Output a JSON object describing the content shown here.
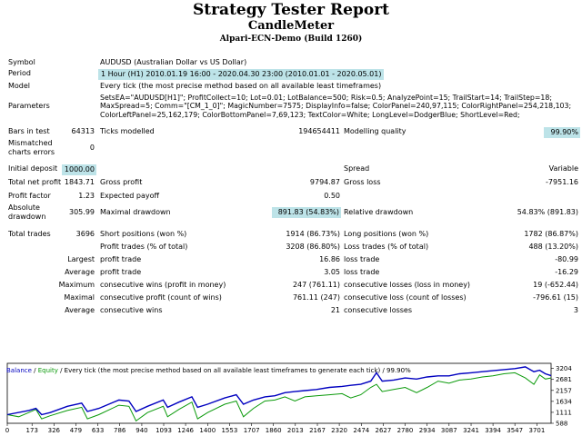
{
  "header": {
    "title": "Strategy Tester Report",
    "ea_name": "CandleMeter",
    "server": "Alpari-ECN-Demo (Build 1260)"
  },
  "info": {
    "symbol_label": "Symbol",
    "symbol_value": "AUDUSD (Australian Dollar vs US Dollar)",
    "period_label": "Period",
    "period_value": "1 Hour (H1) 2010.01.19 16:00 - 2020.04.30 23:00 (2010.01.01 - 2020.05.01)",
    "model_label": "Model",
    "model_value": "Every tick (the most precise method based on all available least timeframes)",
    "parameters_label": "Parameters",
    "parameters_value": "SetsEA=\"AUDUSD[H1]\"; ProfitCollect=10; Lot=0.01; LotBalance=500; Risk=0.5; AnalyzePoint=15; TrailStart=14; TrailStep=18; MaxSpread=5; Comm=\"[CM_1_0]\"; MagicNumber=7575; DisplayInfo=false; ColorPanel=240,97,115; ColorRightPanel=254,218,103; ColorLeftPanel=25,162,179; ColorBottomPanel=7,69,123; TextColor=White; LongLevel=DodgerBlue; ShortLevel=Red;"
  },
  "stats": {
    "bars_label": "Bars in test",
    "bars_value": "64313",
    "ticks_label": "Ticks modelled",
    "ticks_value": "194654411",
    "quality_label": "Modelling quality",
    "quality_value": "99.90%",
    "mismatch_label_1": "Mismatched",
    "mismatch_label_2": "charts errors",
    "mismatch_value": "0",
    "deposit_label": "Initial deposit",
    "deposit_value": "1000.00",
    "spread_label": "Spread",
    "spread_value": "Variable",
    "netprofit_label": "Total net profit",
    "netprofit_value": "1843.71",
    "grossprofit_label": "Gross profit",
    "grossprofit_value": "9794.87",
    "grossloss_label": "Gross loss",
    "grossloss_value": "-7951.16",
    "pf_label": "Profit factor",
    "pf_value": "1.23",
    "payoff_label": "Expected payoff",
    "payoff_value": "0.50",
    "absdd_label_1": "Absolute",
    "absdd_label_2": "drawdown",
    "absdd_value": "305.99",
    "maxdd_label": "Maximal drawdown",
    "maxdd_value": "891.83 (54.83%)",
    "reldd_label": "Relative drawdown",
    "reldd_value": "54.83% (891.83)",
    "trades_label": "Total trades",
    "trades_value": "3696",
    "short_label": "Short positions (won %)",
    "short_value": "1914 (86.73%)",
    "long_label": "Long positions (won %)",
    "long_value": "1782 (86.87%)",
    "ptrades_label": "Profit trades (% of total)",
    "ptrades_value": "3208 (86.80%)",
    "ltrades_label": "Loss trades (% of total)",
    "ltrades_value": "488 (13.20%)",
    "largest_label": "Largest",
    "largest_p_label": "profit trade",
    "largest_p_value": "16.86",
    "largest_l_label": "loss trade",
    "largest_l_value": "-80.99",
    "average_label": "Average",
    "average_p_label": "profit trade",
    "average_p_value": "3.05",
    "average_l_label": "loss trade",
    "average_l_value": "-16.29",
    "maxcons_label": "Maximum",
    "maxcons_w_label": "consecutive wins (profit in money)",
    "maxcons_w_value": "247 (761.11)",
    "maxcons_l_label": "consecutive losses (loss in money)",
    "maxcons_l_value": "19 (-652.44)",
    "maximal_label": "Maximal",
    "maximal_w_label": "consecutive profit (count of wins)",
    "maximal_w_value": "761.11 (247)",
    "maximal_l_label": "consecutive loss (count of losses)",
    "maximal_l_value": "-796.61 (15)",
    "avgcons_label": "Average",
    "avgcons_w_label": "consecutive wins",
    "avgcons_w_value": "21",
    "avgcons_l_label": "consecutive losses",
    "avgcons_l_value": "3"
  },
  "chart_legend": {
    "balance": "Balance",
    "sep": " / ",
    "equity": "Equity",
    "rest": " / Every tick (the most precise method based on all available least timeframes to generate each tick) / 99.90%"
  },
  "chart_data": {
    "type": "line",
    "x_ticks": [
      "0",
      "173",
      "326",
      "479",
      "633",
      "786",
      "940",
      "1093",
      "1246",
      "1400",
      "1553",
      "1707",
      "1860",
      "2013",
      "2167",
      "2320",
      "2474",
      "2627",
      "2780",
      "2934",
      "3087",
      "3241",
      "3394",
      "3547",
      "3701"
    ],
    "y_ticks": [
      "3204",
      "2681",
      "2157",
      "1634",
      "1111",
      "588"
    ],
    "ylim": [
      588,
      3450
    ],
    "xlim": [
      0,
      3800
    ],
    "series": [
      {
        "name": "Balance",
        "color": "#0000c0",
        "points": [
          [
            0,
            1000
          ],
          [
            150,
            1200
          ],
          [
            200,
            1300
          ],
          [
            240,
            1000
          ],
          [
            300,
            1100
          ],
          [
            420,
            1400
          ],
          [
            520,
            1550
          ],
          [
            560,
            1150
          ],
          [
            640,
            1300
          ],
          [
            780,
            1700
          ],
          [
            850,
            1650
          ],
          [
            900,
            1150
          ],
          [
            980,
            1400
          ],
          [
            1090,
            1700
          ],
          [
            1120,
            1350
          ],
          [
            1200,
            1600
          ],
          [
            1290,
            1850
          ],
          [
            1330,
            1350
          ],
          [
            1400,
            1500
          ],
          [
            1520,
            1800
          ],
          [
            1600,
            1950
          ],
          [
            1650,
            1500
          ],
          [
            1720,
            1700
          ],
          [
            1800,
            1850
          ],
          [
            1870,
            1900
          ],
          [
            1940,
            2050
          ],
          [
            2010,
            2100
          ],
          [
            2080,
            2150
          ],
          [
            2160,
            2200
          ],
          [
            2250,
            2300
          ],
          [
            2340,
            2350
          ],
          [
            2400,
            2400
          ],
          [
            2470,
            2450
          ],
          [
            2540,
            2600
          ],
          [
            2580,
            3000
          ],
          [
            2620,
            2600
          ],
          [
            2700,
            2650
          ],
          [
            2780,
            2750
          ],
          [
            2860,
            2700
          ],
          [
            2934,
            2800
          ],
          [
            3010,
            2850
          ],
          [
            3087,
            2850
          ],
          [
            3160,
            2950
          ],
          [
            3240,
            3000
          ],
          [
            3320,
            3050
          ],
          [
            3394,
            3100
          ],
          [
            3470,
            3150
          ],
          [
            3547,
            3200
          ],
          [
            3620,
            3280
          ],
          [
            3680,
            3050
          ],
          [
            3720,
            3120
          ],
          [
            3760,
            2950
          ],
          [
            3800,
            2860
          ]
        ]
      },
      {
        "name": "Equity",
        "color": "#0a9a0a",
        "points": [
          [
            0,
            1000
          ],
          [
            80,
            900
          ],
          [
            150,
            1100
          ],
          [
            200,
            1250
          ],
          [
            240,
            800
          ],
          [
            300,
            950
          ],
          [
            420,
            1200
          ],
          [
            520,
            1350
          ],
          [
            560,
            800
          ],
          [
            640,
            1000
          ],
          [
            780,
            1450
          ],
          [
            850,
            1400
          ],
          [
            900,
            700
          ],
          [
            980,
            1100
          ],
          [
            1090,
            1400
          ],
          [
            1120,
            900
          ],
          [
            1200,
            1250
          ],
          [
            1290,
            1600
          ],
          [
            1330,
            800
          ],
          [
            1400,
            1100
          ],
          [
            1520,
            1500
          ],
          [
            1600,
            1650
          ],
          [
            1650,
            900
          ],
          [
            1720,
            1300
          ],
          [
            1800,
            1650
          ],
          [
            1870,
            1700
          ],
          [
            1940,
            1850
          ],
          [
            2010,
            1650
          ],
          [
            2080,
            1850
          ],
          [
            2160,
            1900
          ],
          [
            2250,
            1950
          ],
          [
            2340,
            2000
          ],
          [
            2400,
            1800
          ],
          [
            2470,
            1950
          ],
          [
            2540,
            2300
          ],
          [
            2580,
            2450
          ],
          [
            2620,
            2100
          ],
          [
            2700,
            2200
          ],
          [
            2780,
            2300
          ],
          [
            2860,
            2050
          ],
          [
            2934,
            2300
          ],
          [
            3010,
            2600
          ],
          [
            3087,
            2500
          ],
          [
            3160,
            2650
          ],
          [
            3240,
            2700
          ],
          [
            3320,
            2800
          ],
          [
            3394,
            2850
          ],
          [
            3470,
            2950
          ],
          [
            3547,
            3000
          ],
          [
            3620,
            2750
          ],
          [
            3680,
            2450
          ],
          [
            3720,
            2900
          ],
          [
            3760,
            2700
          ],
          [
            3800,
            2750
          ]
        ]
      }
    ]
  }
}
